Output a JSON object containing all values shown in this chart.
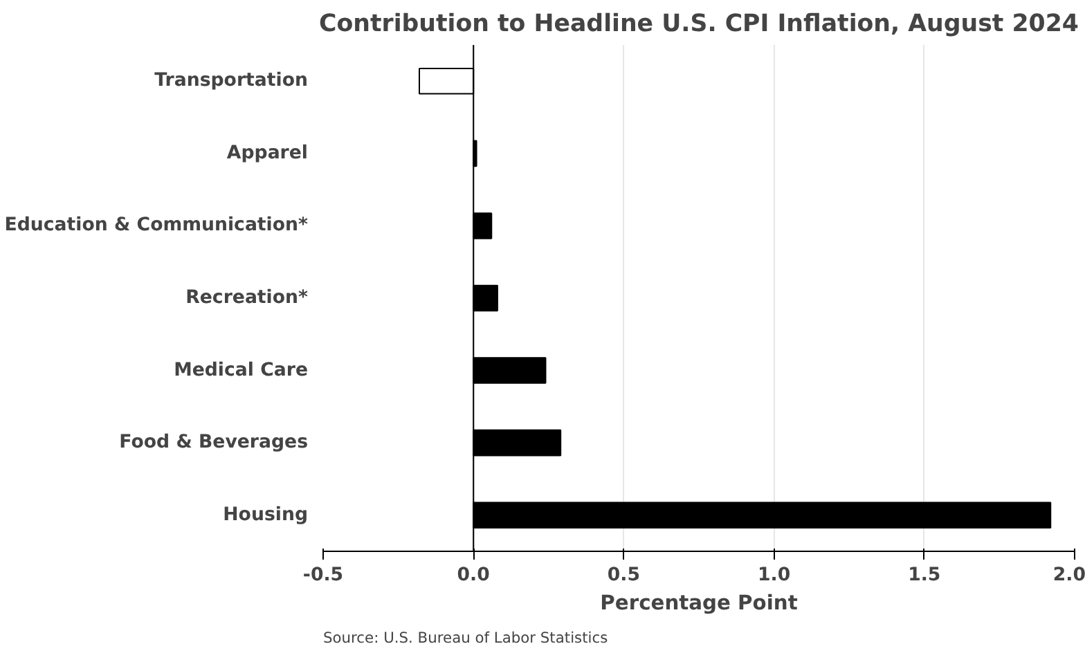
{
  "chart_data": {
    "type": "bar",
    "orientation": "horizontal",
    "title": "Contribution to Headline U.S. CPI Inflation, August 2024",
    "xlabel": "Percentage Point",
    "categories": [
      "Transportation",
      "Apparel",
      "Education & Communication*",
      "Recreation*",
      "Medical Care",
      "Food & Beverages",
      "Housing"
    ],
    "values": [
      -0.18,
      0.01,
      0.06,
      0.08,
      0.24,
      0.29,
      1.92
    ],
    "colors": [
      "#ffffff",
      "#000000",
      "#000000",
      "#000000",
      "#000000",
      "#000000",
      "#000000"
    ],
    "xlim": [
      -0.5,
      2.0
    ],
    "xticks": [
      {
        "value": -0.5,
        "label": "-0.5"
      },
      {
        "value": 0,
        "label": "0.0"
      },
      {
        "value": 0.5,
        "label": "0.5"
      },
      {
        "value": 1.0,
        "label": "1.0"
      },
      {
        "value": 1.5,
        "label": "1.5"
      },
      {
        "value": 2.0,
        "label": "2.0"
      }
    ],
    "grid": "x",
    "ref_lines": [
      {
        "axis": "x",
        "value": 0,
        "label": null,
        "color": "#000000"
      }
    ],
    "annotations": [
      "Source: U.S. Bureau of Labor Statistics"
    ]
  }
}
